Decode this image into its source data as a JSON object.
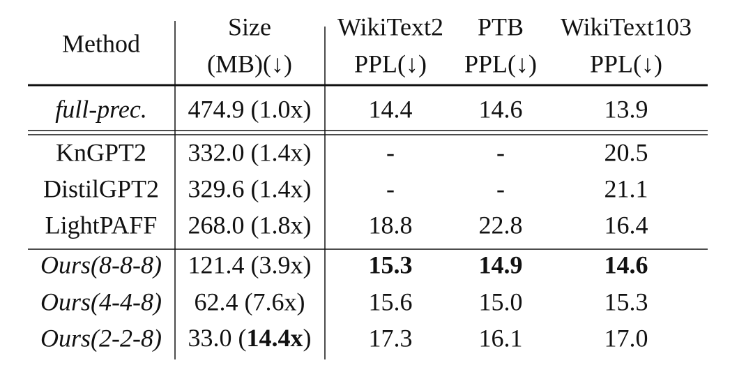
{
  "table": {
    "header": {
      "row1": [
        "Method",
        "Size",
        "WikiText2",
        "PTB",
        "WikiText103"
      ],
      "row2": [
        "(MB)(↓)",
        "PPL(↓)",
        "PPL(↓)",
        "PPL(↓)"
      ]
    },
    "rows": [
      [
        "full-prec.",
        "474.9 (1.0x)",
        "14.4",
        "14.6",
        "13.9"
      ],
      [
        "KnGPT2",
        "332.0 (1.4x)",
        "-",
        "-",
        "20.5"
      ],
      [
        "DistilGPT2",
        "329.6 (1.4x)",
        "-",
        "-",
        "21.1"
      ],
      [
        "LightPAFF",
        "268.0 (1.8x)",
        "18.8",
        "22.8",
        "16.4"
      ],
      [
        "Ours(8-8-8)",
        "121.4 (3.9x)",
        "15.3",
        "14.9",
        "14.6"
      ],
      [
        "Ours(4-4-8)",
        "62.4 (7.6x)",
        "15.6",
        "15.0",
        "15.3"
      ],
      [
        "Ours(2-2-8)",
        [
          "33.0 (",
          "14.4x",
          ")"
        ],
        "17.3",
        "16.1",
        "17.0"
      ]
    ]
  }
}
